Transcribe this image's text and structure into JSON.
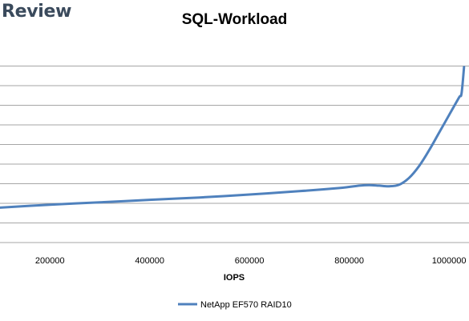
{
  "brand": {
    "text": "Review"
  },
  "chart_data": {
    "type": "line",
    "title": "SQL-Workload",
    "xlabel": "IOPS",
    "ylabel": "",
    "xlim": [
      100000,
      1040000
    ],
    "ylim": [
      0,
      10
    ],
    "x_ticks": [
      200000,
      400000,
      600000,
      800000,
      1000000
    ],
    "y_gridlines": [
      0,
      1,
      2,
      3,
      4,
      5,
      6,
      7,
      8,
      9
    ],
    "grid": true,
    "legend": "bottom",
    "series": [
      {
        "name": "NetApp EF570 RAID10",
        "color": "#4f81bd",
        "x": [
          100000,
          200000,
          300000,
          400000,
          500000,
          600000,
          700000,
          780000,
          820000,
          840000,
          860000,
          880000,
          900000,
          920000,
          940000,
          960000,
          980000,
          1000000,
          1020000,
          1025000,
          1030000
        ],
        "y": [
          1.78,
          1.93,
          2.05,
          2.18,
          2.3,
          2.45,
          2.62,
          2.78,
          2.9,
          2.93,
          2.9,
          2.87,
          2.95,
          3.3,
          3.9,
          4.7,
          5.6,
          6.5,
          7.4,
          7.6,
          8.95
        ]
      }
    ]
  }
}
